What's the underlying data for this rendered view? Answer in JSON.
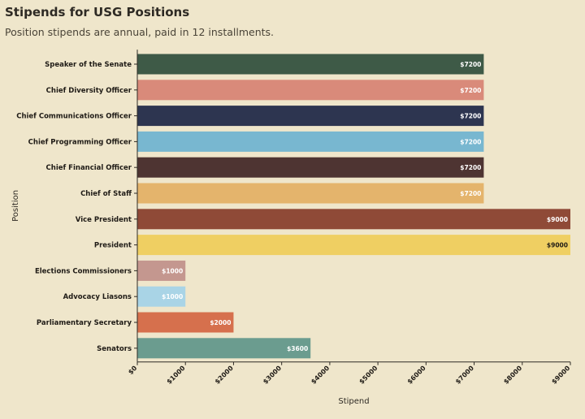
{
  "chart_data": {
    "type": "bar",
    "orientation": "horizontal",
    "title": "Stipends for USG Positions",
    "subtitle": "Position stipends are annual, paid in 12 installments.",
    "xlabel": "Stipend",
    "ylabel": "Position",
    "xlim": [
      0,
      9000
    ],
    "x_ticks": [
      "$0",
      "$1000",
      "$2000",
      "$3000",
      "$4000",
      "$5000",
      "$6000",
      "$7000",
      "$8000",
      "$9000"
    ],
    "x_tick_values": [
      0,
      1000,
      2000,
      3000,
      4000,
      5000,
      6000,
      7000,
      8000,
      9000
    ],
    "grid": false,
    "categories": [
      "Speaker of the Senate",
      "Chief Diversity Officer",
      "Chief Communications Officer",
      "Chief Programming Officer",
      "Chief Financial Officer",
      "Chief of Staff",
      "Vice President",
      "President",
      "Elections Commissioners",
      "Advocacy Liasons",
      "Parliamentary Secretary",
      "Senators"
    ],
    "values": [
      7200,
      7200,
      7200,
      7200,
      7200,
      7200,
      9000,
      9000,
      1000,
      1000,
      2000,
      3600
    ],
    "value_labels": [
      "$7200",
      "$7200",
      "$7200",
      "$7200",
      "$7200",
      "$7200",
      "$9000",
      "$9000",
      "$1000",
      "$1000",
      "$2000",
      "$3600"
    ],
    "colors": [
      "#3e5a47",
      "#d98a7a",
      "#2d3550",
      "#78b7d0",
      "#4e3432",
      "#e4b46c",
      "#8f4a37",
      "#efcf62",
      "#c4978f",
      "#a9d4e6",
      "#d6704d",
      "#6b9c8f"
    ],
    "label_colors": [
      "#ffffff",
      "#ffffff",
      "#ffffff",
      "#ffffff",
      "#ffffff",
      "#ffffff",
      "#ffffff",
      "#1f1b16",
      "#ffffff",
      "#ffffff",
      "#ffffff",
      "#ffffff"
    ]
  }
}
